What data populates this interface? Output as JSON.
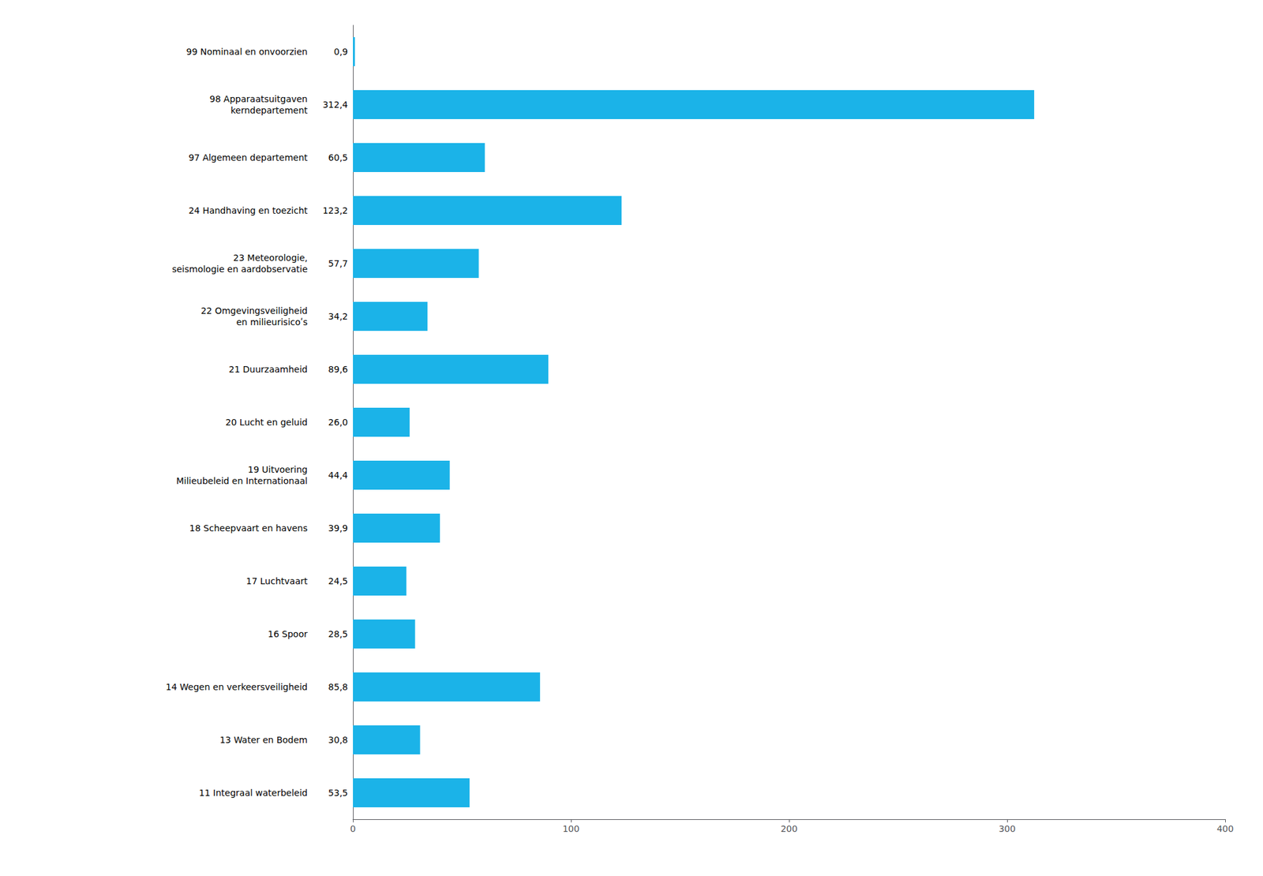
{
  "chart_data": {
    "type": "bar",
    "orientation": "horizontal",
    "categories": [
      "11 Integraal waterbeleid",
      "13 Water en Bodem",
      "14 Wegen en verkeersveiligheid",
      "16 Spoor",
      "17 Luchtvaart",
      "18 Scheepvaart en havens",
      "19 Uitvoering\nMilieubeleid en Internationaal",
      "20 Lucht en geluid",
      "21 Duurzaamheid",
      "22 Omgevingsveiligheid\nen milieurisicoʹs",
      "23 Meteorologie,\nseismologie en aardobservatie",
      "24 Handhaving en toezicht",
      "97 Algemeen departement",
      "98 Apparaatsuitgaven\nkerndepartement",
      "99 Nominaal en onvoorzien"
    ],
    "values": [
      53.5,
      30.8,
      85.8,
      28.5,
      24.5,
      39.9,
      44.4,
      26.0,
      89.6,
      34.2,
      57.7,
      123.2,
      60.5,
      312.4,
      0.9
    ],
    "value_labels": [
      "53,5",
      "30,8",
      "85,8",
      "28,5",
      "24,5",
      "39,9",
      "44,4",
      "26,0",
      "89,6",
      "34,2",
      "57,7",
      "123,2",
      "60,5",
      "312,4",
      "0,9"
    ],
    "data_labels": true,
    "color": "#1BB3E8",
    "xlim": [
      0,
      400
    ],
    "xticks": [
      0,
      100,
      200,
      300,
      400
    ],
    "grid": false
  }
}
